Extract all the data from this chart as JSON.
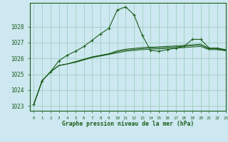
{
  "title": "Graphe pression niveau de la mer (hPa)",
  "background_color": "#cde8f0",
  "grid_color": "#9ecfbf",
  "line_color": "#1a5c1a",
  "xlim": [
    -0.5,
    23
  ],
  "ylim": [
    1022.7,
    1029.5
  ],
  "yticks": [
    1023,
    1024,
    1025,
    1026,
    1027,
    1028
  ],
  "xticks": [
    0,
    1,
    2,
    3,
    4,
    5,
    6,
    7,
    8,
    9,
    10,
    11,
    12,
    13,
    14,
    15,
    16,
    17,
    18,
    19,
    20,
    21,
    22,
    23
  ],
  "series": [
    [
      1023.1,
      1024.6,
      1025.15,
      1025.85,
      1026.2,
      1026.45,
      1026.75,
      1027.15,
      1027.55,
      1027.9,
      1029.05,
      1029.25,
      1028.75,
      1027.45,
      1026.5,
      1026.45,
      1026.55,
      1026.65,
      1026.75,
      1027.2,
      1027.2,
      1026.65,
      1026.65,
      1026.55
    ],
    [
      1023.1,
      1024.6,
      1025.15,
      1025.55,
      1025.65,
      1025.75,
      1025.9,
      1026.05,
      1026.15,
      1026.25,
      1026.35,
      1026.45,
      1026.5,
      1026.55,
      1026.58,
      1026.6,
      1026.63,
      1026.65,
      1026.68,
      1026.72,
      1026.75,
      1026.55,
      1026.55,
      1026.48
    ],
    [
      1023.1,
      1024.6,
      1025.15,
      1025.55,
      1025.65,
      1025.77,
      1025.92,
      1026.07,
      1026.17,
      1026.27,
      1026.42,
      1026.52,
      1026.57,
      1026.62,
      1026.65,
      1026.67,
      1026.7,
      1026.73,
      1026.76,
      1026.8,
      1026.83,
      1026.6,
      1026.6,
      1026.5
    ],
    [
      1023.1,
      1024.6,
      1025.15,
      1025.55,
      1025.65,
      1025.8,
      1025.95,
      1026.1,
      1026.2,
      1026.3,
      1026.48,
      1026.58,
      1026.63,
      1026.68,
      1026.71,
      1026.73,
      1026.76,
      1026.79,
      1026.82,
      1026.86,
      1026.9,
      1026.62,
      1026.62,
      1026.52
    ]
  ]
}
